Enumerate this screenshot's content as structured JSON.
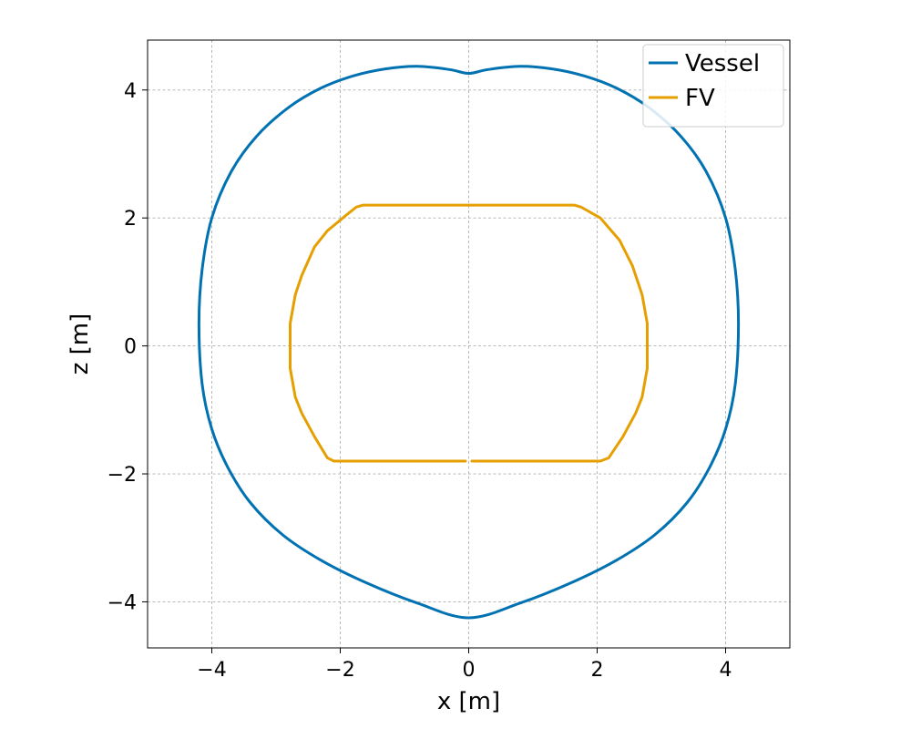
{
  "chart_data": {
    "type": "line",
    "title": "",
    "xlabel": "x [m]",
    "ylabel": "z [m]",
    "xlim": [
      -5,
      5
    ],
    "ylim": [
      -4.72,
      4.78
    ],
    "xticks": [
      -4,
      -2,
      0,
      2,
      4
    ],
    "yticks": [
      -4,
      -2,
      0,
      2,
      4
    ],
    "xtick_labels": [
      "−4",
      "−2",
      "0",
      "2",
      "4"
    ],
    "ytick_labels": [
      "−4",
      "−2",
      "0",
      "2",
      "4"
    ],
    "grid": true,
    "legend_position": "top-right",
    "aspect": "equal",
    "series": [
      {
        "name": "Vessel",
        "color": "#0072B2",
        "closed": true,
        "points": [
          [
            0.0,
            4.26
          ],
          [
            0.3,
            4.32
          ],
          [
            0.8,
            4.37
          ],
          [
            1.3,
            4.33
          ],
          [
            1.8,
            4.22
          ],
          [
            2.3,
            4.03
          ],
          [
            2.8,
            3.73
          ],
          [
            3.3,
            3.28
          ],
          [
            3.7,
            2.72
          ],
          [
            4.0,
            2.0
          ],
          [
            4.15,
            1.2
          ],
          [
            4.2,
            0.35
          ],
          [
            4.15,
            -0.6
          ],
          [
            4.0,
            -1.3
          ],
          [
            3.75,
            -1.9
          ],
          [
            3.4,
            -2.45
          ],
          [
            2.9,
            -2.95
          ],
          [
            2.3,
            -3.35
          ],
          [
            1.6,
            -3.7
          ],
          [
            0.8,
            -4.02
          ],
          [
            0.0,
            -4.25
          ],
          [
            -0.8,
            -4.02
          ],
          [
            -1.6,
            -3.7
          ],
          [
            -2.3,
            -3.35
          ],
          [
            -2.9,
            -2.95
          ],
          [
            -3.4,
            -2.45
          ],
          [
            -3.75,
            -1.9
          ],
          [
            -4.0,
            -1.3
          ],
          [
            -4.15,
            -0.6
          ],
          [
            -4.2,
            0.35
          ],
          [
            -4.15,
            1.2
          ],
          [
            -4.0,
            2.0
          ],
          [
            -3.7,
            2.72
          ],
          [
            -3.3,
            3.28
          ],
          [
            -2.8,
            3.73
          ],
          [
            -2.3,
            4.03
          ],
          [
            -1.8,
            4.22
          ],
          [
            -1.3,
            4.33
          ],
          [
            -0.8,
            4.37
          ],
          [
            -0.3,
            4.32
          ],
          [
            0.0,
            4.26
          ]
        ]
      },
      {
        "name": "FV",
        "color": "#E69F00",
        "closed": false,
        "points": [
          [
            0.05,
            -1.8
          ],
          [
            2.05,
            -1.8
          ],
          [
            2.18,
            -1.75
          ],
          [
            2.4,
            -1.42
          ],
          [
            2.6,
            -1.05
          ],
          [
            2.7,
            -0.8
          ],
          [
            2.78,
            -0.35
          ],
          [
            2.78,
            0.35
          ],
          [
            2.7,
            0.8
          ],
          [
            2.55,
            1.25
          ],
          [
            2.35,
            1.65
          ],
          [
            2.05,
            2.0
          ],
          [
            1.75,
            2.17
          ],
          [
            1.65,
            2.2
          ],
          [
            -1.65,
            2.2
          ],
          [
            -1.75,
            2.17
          ],
          [
            -1.9,
            2.05
          ],
          [
            -2.2,
            1.8
          ],
          [
            -2.4,
            1.55
          ],
          [
            -2.6,
            1.1
          ],
          [
            -2.7,
            0.8
          ],
          [
            -2.78,
            0.35
          ],
          [
            -2.78,
            -0.35
          ],
          [
            -2.7,
            -0.8
          ],
          [
            -2.6,
            -1.05
          ],
          [
            -2.4,
            -1.42
          ],
          [
            -2.2,
            -1.75
          ],
          [
            -2.1,
            -1.8
          ],
          [
            -0.05,
            -1.8
          ]
        ]
      }
    ]
  }
}
